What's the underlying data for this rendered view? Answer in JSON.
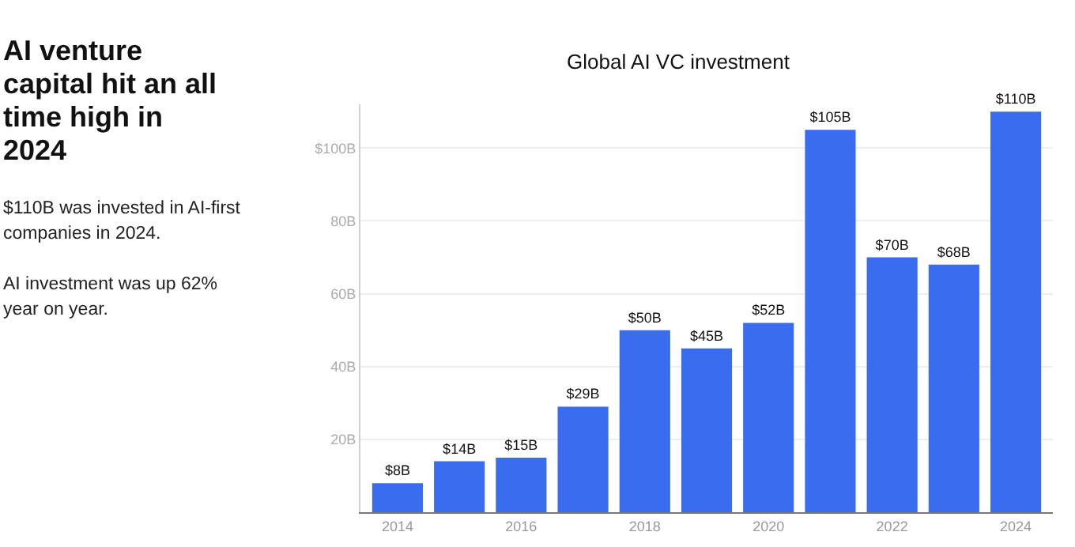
{
  "chart_data": {
    "type": "bar",
    "title": "Global AI VC investment",
    "annotations": [
      "AI venture capital hit an all time high in 2024",
      "$110B was invested in AI-first companies in 2024.",
      "AI investment was up 62% year on year."
    ],
    "categories": [
      "2014",
      null,
      "2016",
      null,
      "2018",
      null,
      "2020",
      null,
      "2022",
      null,
      "2024"
    ],
    "values": [
      8,
      14,
      15,
      29,
      50,
      45,
      52,
      105,
      70,
      68,
      110
    ],
    "value_labels": [
      "$8B",
      "$14B",
      "$15B",
      "$29B",
      "$50B",
      "$45B",
      "$52B",
      "$105B",
      "$70B",
      "$68B",
      "$110B"
    ],
    "color": "#3a6cf0",
    "ylim": [
      0,
      112
    ],
    "yticks": [
      {
        "value": 20,
        "label": "20B"
      },
      {
        "value": 40,
        "label": "40B"
      },
      {
        "value": 60,
        "label": "60B"
      },
      {
        "value": 80,
        "label": "80B"
      },
      {
        "value": 100,
        "label": "$100B"
      }
    ],
    "grid": "y",
    "legend": false
  }
}
